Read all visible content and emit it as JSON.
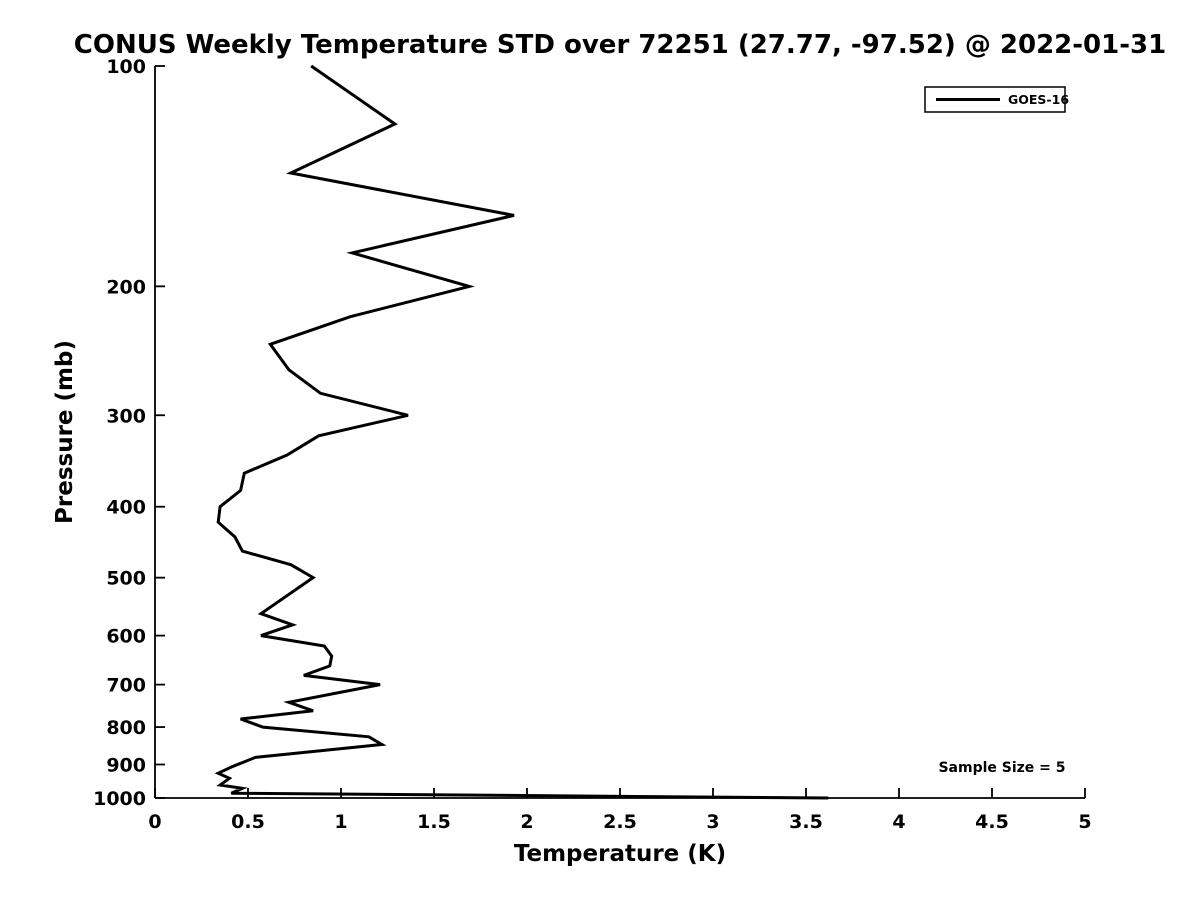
{
  "figure": {
    "title": "CONUS Weekly Temperature STD over 72251 (27.77, -97.52) @ 2022-01-31",
    "background_color": "#ffffff",
    "line_color": "#000000",
    "text_color": "#000000"
  },
  "chart_data": {
    "type": "line",
    "title": "CONUS Weekly Temperature STD over 72251 (27.77, -97.52) @ 2022-01-31",
    "xlabel": "Temperature (K)",
    "ylabel": "Pressure (mb)",
    "xlim": [
      0,
      5
    ],
    "ylim": [
      100,
      1000
    ],
    "y_scale": "log",
    "y_axis_inverted": true,
    "grid": false,
    "x_ticks": [
      0,
      0.5,
      1,
      1.5,
      2,
      2.5,
      3,
      3.5,
      4,
      4.5,
      5
    ],
    "x_tick_labels": [
      "0",
      "0.5",
      "1",
      "1.5",
      "2",
      "2.5",
      "3",
      "3.5",
      "4",
      "4.5",
      "5"
    ],
    "y_ticks": [
      100,
      200,
      300,
      400,
      500,
      600,
      700,
      800,
      900,
      1000
    ],
    "y_tick_labels": [
      "100",
      "200",
      "300",
      "400",
      "500",
      "600",
      "700",
      "800",
      "900",
      "1000"
    ],
    "legend": {
      "position": "top-right",
      "entries": [
        {
          "label": "GOES-16",
          "color": "#000000",
          "style": "solid"
        }
      ]
    },
    "annotations": [
      {
        "text": "Sample Size = 5",
        "x": 4.55,
        "y": 920
      }
    ],
    "sample_size": 5,
    "series": [
      {
        "name": "GOES-16",
        "color": "#000000",
        "points_format": "[temperature_K_std, pressure_mb]",
        "points": [
          [
            0.84,
            100
          ],
          [
            1.29,
            120
          ],
          [
            0.73,
            140
          ],
          [
            1.93,
            160
          ],
          [
            1.06,
            180
          ],
          [
            1.69,
            200
          ],
          [
            1.05,
            220
          ],
          [
            0.62,
            240
          ],
          [
            0.72,
            260
          ],
          [
            0.89,
            280
          ],
          [
            1.36,
            300
          ],
          [
            0.88,
            320
          ],
          [
            0.71,
            340
          ],
          [
            0.48,
            360
          ],
          [
            0.46,
            380
          ],
          [
            0.35,
            400
          ],
          [
            0.34,
            420
          ],
          [
            0.43,
            440
          ],
          [
            0.47,
            460
          ],
          [
            0.73,
            480
          ],
          [
            0.85,
            500
          ],
          [
            0.57,
            560
          ],
          [
            0.74,
            580
          ],
          [
            0.57,
            600
          ],
          [
            0.91,
            620
          ],
          [
            0.95,
            640
          ],
          [
            0.94,
            660
          ],
          [
            0.8,
            680
          ],
          [
            1.21,
            700
          ],
          [
            0.72,
            740
          ],
          [
            0.85,
            760
          ],
          [
            0.46,
            780
          ],
          [
            0.58,
            800
          ],
          [
            1.15,
            825
          ],
          [
            1.22,
            845
          ],
          [
            0.54,
            880
          ],
          [
            0.42,
            905
          ],
          [
            0.34,
            925
          ],
          [
            0.4,
            940
          ],
          [
            0.35,
            960
          ],
          [
            0.47,
            970
          ],
          [
            0.41,
            985
          ],
          [
            3.62,
            1000
          ]
        ]
      }
    ]
  }
}
